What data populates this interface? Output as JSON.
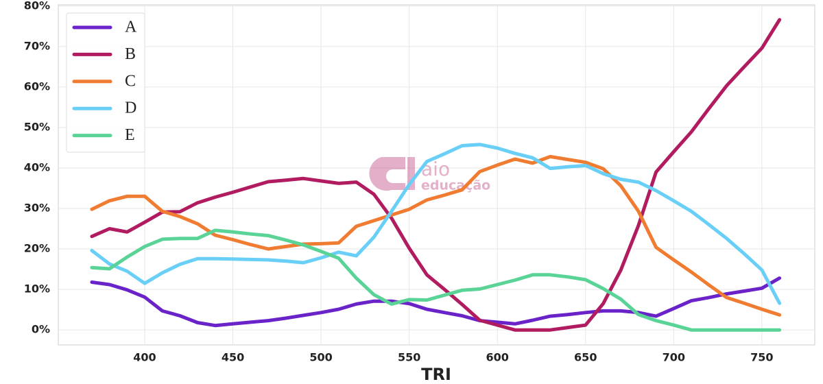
{
  "chart_data": {
    "type": "line",
    "x_label": "TRI",
    "watermark": [
      "aio",
      "educação"
    ],
    "x": [
      370,
      380,
      390,
      400,
      410,
      420,
      430,
      440,
      450,
      460,
      470,
      480,
      490,
      500,
      510,
      520,
      530,
      540,
      550,
      560,
      570,
      580,
      590,
      600,
      610,
      620,
      630,
      640,
      650,
      660,
      670,
      680,
      690,
      700,
      710,
      720,
      730,
      740,
      750,
      760
    ],
    "series": [
      {
        "name": "A",
        "color": "#6a22c9",
        "values": [
          11.8,
          11.2,
          9.9,
          8.1,
          4.7,
          3.5,
          1.8,
          1.1,
          1.5,
          1.9,
          2.3,
          2.9,
          3.6,
          4.3,
          5.1,
          6.4,
          7.1,
          7.1,
          6.5,
          5.1,
          4.3,
          3.5,
          2.3,
          1.9,
          1.5,
          2.4,
          3.4,
          3.8,
          4.3,
          4.7,
          4.7,
          4.3,
          3.4,
          5.3,
          7.2,
          8.0,
          8.9,
          9.6,
          10.3,
          12.8
        ]
      },
      {
        "name": "B",
        "color": "#b01c5f",
        "values": [
          23.1,
          25.0,
          24.2,
          26.6,
          29.1,
          29.2,
          31.4,
          32.8,
          34.0,
          35.3,
          36.6,
          37.0,
          37.4,
          36.8,
          36.2,
          36.5,
          33.5,
          27.6,
          20.2,
          13.6,
          10.0,
          6.3,
          2.4,
          1.2,
          0,
          0,
          0,
          0.6,
          1.2,
          6.5,
          14.8,
          25.8,
          39.0,
          44.0,
          48.9,
          54.7,
          60.3,
          65.0,
          69.6,
          76.6
        ]
      },
      {
        "name": "C",
        "color": "#f07c32",
        "values": [
          29.8,
          31.9,
          33.0,
          33.0,
          29.3,
          28.0,
          26.2,
          23.4,
          22.3,
          21.1,
          20.0,
          20.6,
          21.2,
          21.3,
          21.5,
          25.6,
          27.0,
          28.4,
          29.8,
          32.1,
          33.3,
          34.6,
          39.1,
          40.7,
          42.2,
          41.2,
          42.8,
          42.1,
          41.4,
          39.8,
          35.6,
          29.3,
          20.4,
          17.3,
          14.3,
          11.1,
          8.0,
          6.6,
          5.1,
          3.7
        ]
      },
      {
        "name": "D",
        "color": "#69cff7",
        "values": [
          19.6,
          16.3,
          14.5,
          11.5,
          14.1,
          16.2,
          17.6,
          17.6,
          17.5,
          17.4,
          17.3,
          17.0,
          16.6,
          17.8,
          19.2,
          18.3,
          22.9,
          29.3,
          35.9,
          41.6,
          43.5,
          45.5,
          45.8,
          44.9,
          43.6,
          42.5,
          39.9,
          40.3,
          40.6,
          38.6,
          37.2,
          36.5,
          34.4,
          31.9,
          29.3,
          26.0,
          22.6,
          18.8,
          14.8,
          6.6
        ]
      },
      {
        "name": "E",
        "color": "#5ad396",
        "values": [
          15.4,
          15.1,
          18.0,
          20.6,
          22.4,
          22.6,
          22.6,
          24.6,
          24.2,
          23.7,
          23.3,
          22.2,
          21.0,
          19.4,
          17.7,
          12.8,
          8.7,
          6.4,
          7.5,
          7.4,
          8.6,
          9.8,
          10.1,
          11.2,
          12.3,
          13.6,
          13.6,
          13.1,
          12.4,
          10.2,
          7.6,
          3.8,
          2.3,
          1.2,
          0,
          0,
          0,
          0,
          0,
          0
        ]
      }
    ],
    "xlim": [
      351,
      780
    ],
    "ylim": [
      -3.7,
      80.3
    ],
    "xticks": [
      400,
      450,
      500,
      550,
      600,
      650,
      700,
      750
    ],
    "yticks": [
      {
        "value": 0,
        "label": "0%"
      },
      {
        "value": 10,
        "label": "10%"
      },
      {
        "value": 20,
        "label": "20%"
      },
      {
        "value": 30,
        "label": "30%"
      },
      {
        "value": 40,
        "label": "40%"
      },
      {
        "value": 50,
        "label": "50%"
      },
      {
        "value": 60,
        "label": "60%"
      },
      {
        "value": 70,
        "label": "70%"
      },
      {
        "value": 80,
        "label": "80%"
      }
    ],
    "grid": true,
    "legend": "upper-left"
  }
}
